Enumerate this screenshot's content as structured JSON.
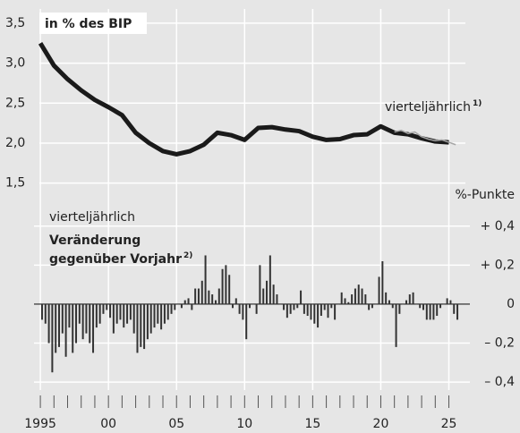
{
  "chart_data": [
    {
      "type": "line",
      "annotation": "in % des BIP",
      "series": [
        {
          "color": "#1a1a1a",
          "x": [
            1995,
            1996,
            1997,
            1998,
            1999,
            2000,
            2001,
            2002,
            2003,
            2004,
            2005,
            2006,
            2007,
            2008,
            2009,
            2010,
            2011,
            2012,
            2013,
            2014,
            2015,
            2016,
            2017,
            2018,
            2019,
            2020,
            2021,
            2022,
            2023,
            2024,
            2025
          ],
          "values": [
            3.25,
            2.97,
            2.8,
            2.66,
            2.54,
            2.45,
            2.35,
            2.13,
            2.0,
            1.9,
            1.86,
            1.9,
            1.98,
            2.13,
            2.1,
            2.04,
            2.19,
            2.2,
            2.17,
            2.15,
            2.08,
            2.04,
            2.05,
            2.1,
            2.11,
            2.21,
            2.13,
            2.11,
            2.06,
            2.02,
            2.01
          ]
        },
        {
          "color": "#a6a6a6",
          "x": [
            2021,
            2021.5,
            2022,
            2022.5,
            2023,
            2023.5,
            2024,
            2024.5,
            2025,
            2025.5
          ],
          "values": [
            2.14,
            2.16,
            2.12,
            2.14,
            2.08,
            2.05,
            2.03,
            2.04,
            2.01,
            1.98
          ]
        }
      ],
      "series_label": {
        "text": "vierteljährlich",
        "note": "1)"
      },
      "xlim": [
        1994.6,
        2027.2
      ],
      "ylim": [
        1.25,
        3.6
      ],
      "yticks": [
        {
          "value": 1.5,
          "label": "1,5"
        },
        {
          "value": 2.0,
          "label": "2,0"
        },
        {
          "value": 2.5,
          "label": "2,5"
        },
        {
          "value": 3.0,
          "label": "3,0"
        },
        {
          "value": 3.5,
          "label": "3,5"
        }
      ],
      "grid": true
    },
    {
      "type": "bar",
      "annotation": "vierteljährlich",
      "title_lines": [
        "Veränderung",
        "gegenüber Vorjahr"
      ],
      "title_note": "2)",
      "y_axis_label": "%-Punkte",
      "color": "#333333",
      "x": [
        1995.125,
        1995.375,
        1995.625,
        1995.875,
        1996.125,
        1996.375,
        1996.625,
        1996.875,
        1997.125,
        1997.375,
        1997.625,
        1997.875,
        1998.125,
        1998.375,
        1998.625,
        1998.875,
        1999.125,
        1999.375,
        1999.625,
        1999.875,
        2000.125,
        2000.375,
        2000.625,
        2000.875,
        2001.125,
        2001.375,
        2001.625,
        2001.875,
        2002.125,
        2002.375,
        2002.625,
        2002.875,
        2003.125,
        2003.375,
        2003.625,
        2003.875,
        2004.125,
        2004.375,
        2004.625,
        2004.875,
        2005.125,
        2005.375,
        2005.625,
        2005.875,
        2006.125,
        2006.375,
        2006.625,
        2006.875,
        2007.125,
        2007.375,
        2007.625,
        2007.875,
        2008.125,
        2008.375,
        2008.625,
        2008.875,
        2009.125,
        2009.375,
        2009.625,
        2009.875,
        2010.125,
        2010.375,
        2010.625,
        2010.875,
        2011.125,
        2011.375,
        2011.625,
        2011.875,
        2012.125,
        2012.375,
        2012.625,
        2012.875,
        2013.125,
        2013.375,
        2013.625,
        2013.875,
        2014.125,
        2014.375,
        2014.625,
        2014.875,
        2015.125,
        2015.375,
        2015.625,
        2015.875,
        2016.125,
        2016.375,
        2016.625,
        2016.875,
        2017.125,
        2017.375,
        2017.625,
        2017.875,
        2018.125,
        2018.375,
        2018.625,
        2018.875,
        2019.125,
        2019.375,
        2019.625,
        2019.875,
        2020.125,
        2020.375,
        2020.625,
        2020.875,
        2021.125,
        2021.375,
        2021.625,
        2021.875,
        2022.125,
        2022.375,
        2022.625,
        2022.875,
        2023.125,
        2023.375,
        2023.625,
        2023.875,
        2024.125,
        2024.375,
        2024.625,
        2024.875,
        2025.125,
        2025.375,
        2025.625
      ],
      "values": [
        -0.08,
        -0.1,
        -0.2,
        -0.35,
        -0.25,
        -0.22,
        -0.15,
        -0.27,
        -0.12,
        -0.25,
        -0.2,
        -0.1,
        -0.18,
        -0.15,
        -0.2,
        -0.25,
        -0.12,
        -0.1,
        -0.05,
        -0.03,
        -0.07,
        -0.15,
        -0.1,
        -0.08,
        -0.12,
        -0.1,
        -0.08,
        -0.15,
        -0.25,
        -0.22,
        -0.23,
        -0.18,
        -0.15,
        -0.12,
        -0.1,
        -0.13,
        -0.1,
        -0.08,
        -0.05,
        -0.03,
        0.0,
        -0.02,
        0.02,
        0.03,
        -0.03,
        0.08,
        0.08,
        0.12,
        0.25,
        0.07,
        0.05,
        0.02,
        0.08,
        0.18,
        0.2,
        0.15,
        -0.02,
        0.03,
        -0.05,
        -0.08,
        -0.18,
        -0.02,
        0.0,
        -0.05,
        0.2,
        0.08,
        0.12,
        0.25,
        0.1,
        0.05,
        0.0,
        -0.03,
        -0.07,
        -0.05,
        -0.03,
        -0.02,
        0.07,
        -0.05,
        -0.06,
        -0.08,
        -0.1,
        -0.12,
        -0.06,
        -0.03,
        -0.07,
        -0.02,
        -0.08,
        0.0,
        0.06,
        0.03,
        0.01,
        0.05,
        0.08,
        0.1,
        0.08,
        0.05,
        -0.03,
        -0.02,
        0.0,
        0.14,
        0.22,
        0.06,
        0.02,
        -0.02,
        -0.22,
        -0.05,
        0.0,
        0.02,
        0.05,
        0.06,
        0.0,
        -0.02,
        -0.03,
        -0.08,
        -0.08,
        -0.08,
        -0.06,
        -0.02,
        0.0,
        0.03,
        0.02,
        -0.05,
        -0.08
      ],
      "xlim": [
        1994.6,
        2027.2
      ],
      "ylim": [
        -0.45,
        0.5
      ],
      "yticks": [
        {
          "value": -0.4,
          "label": "– 0,4"
        },
        {
          "value": -0.2,
          "label": "– 0,2"
        },
        0,
        {
          "value": 0.2,
          "label": "+ 0,2"
        },
        {
          "value": 0.4,
          "label": "+ 0,4"
        }
      ],
      "xticks": [
        {
          "value": 1995,
          "label": "1995"
        },
        {
          "value": 2000,
          "label": "00"
        },
        {
          "value": 2005,
          "label": "05"
        },
        {
          "value": 2010,
          "label": "10"
        },
        {
          "value": 2015,
          "label": "15"
        },
        {
          "value": 2020,
          "label": "20"
        },
        {
          "value": 2025,
          "label": "25"
        }
      ],
      "xminor_ticks": [
        1995,
        1996,
        1997,
        1998,
        1999,
        2000,
        2001,
        2002,
        2003,
        2004,
        2005,
        2006,
        2007,
        2008,
        2009,
        2010,
        2011,
        2012,
        2013,
        2014,
        2015,
        2016,
        2017,
        2018,
        2019,
        2020,
        2021,
        2022,
        2023,
        2024,
        2025
      ],
      "grid": true
    }
  ]
}
